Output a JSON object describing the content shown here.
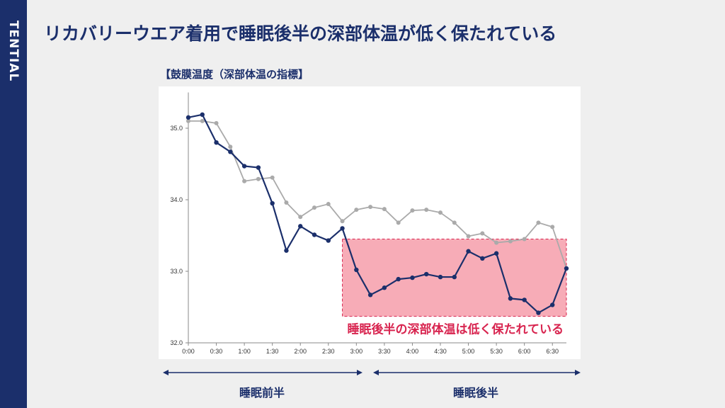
{
  "brand": "TENTIAL",
  "title": "リカバリーウエア着用で睡眠後半の深部体温が低く保たれている",
  "colors": {
    "background": "#efefef",
    "brand_navy": "#1b2f6b",
    "series_recovery": "#1b2f6b",
    "series_normal": "#aaaaaa",
    "highlight_fill": "#f7a8b3",
    "highlight_text": "#d8244f"
  },
  "phases": {
    "first_half": "睡眠前半",
    "second_half": "睡眠後半"
  },
  "chart_data": {
    "type": "line",
    "title": "【鼓膜温度（深部体温の指標】",
    "xlabel": "",
    "ylabel": "",
    "x_tick_labels": [
      "0:00",
      "0:30",
      "1:00",
      "1:30",
      "2:00",
      "2:30",
      "3:00",
      "3:30",
      "4:00",
      "4:30",
      "5:00",
      "5:30",
      "6:00",
      "6:30"
    ],
    "y_ticks": [
      "32.0",
      "33.0",
      "34.0",
      "35.0"
    ],
    "ylim": [
      32.0,
      35.5
    ],
    "x_minutes_step": 15,
    "grid": false,
    "legend": "none",
    "series": [
      {
        "values": [
          35.15,
          35.19,
          34.8,
          34.67,
          34.47,
          34.45,
          33.95,
          33.29,
          33.63,
          33.51,
          33.43,
          33.6,
          33.02,
          32.67,
          32.77,
          32.89,
          32.91,
          32.96,
          32.92,
          32.92,
          33.28,
          33.18,
          33.25,
          32.62,
          32.6,
          32.42,
          32.53,
          33.04
        ]
      },
      {
        "values": [
          35.1,
          35.1,
          35.07,
          34.74,
          34.26,
          34.29,
          34.31,
          33.96,
          33.76,
          33.89,
          33.94,
          33.7,
          33.86,
          33.9,
          33.87,
          33.68,
          33.85,
          33.86,
          33.82,
          33.68,
          33.49,
          33.53,
          33.4,
          33.42,
          33.45,
          33.68,
          33.62,
          33.04
        ]
      }
    ],
    "annotation": {
      "text": "睡眠後半の深部体温は低く保たれている",
      "x_range": [
        "2:45",
        "6:45"
      ],
      "y_range": [
        32.37,
        33.45
      ]
    }
  }
}
